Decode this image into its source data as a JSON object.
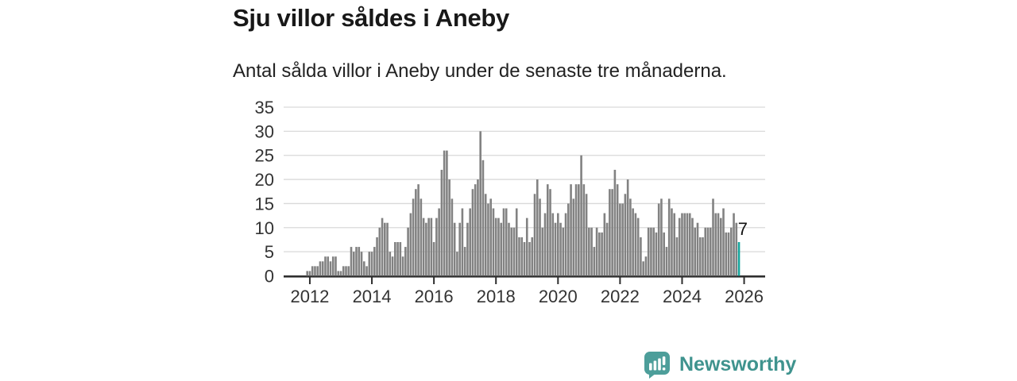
{
  "header": {
    "title": "Sju villor såldes i Aneby",
    "subtitle": "Antal sålda villor i Aneby under de senaste tre månaderna."
  },
  "chart_data": {
    "type": "bar",
    "title": "Sju villor såldes i Aneby",
    "subtitle": "Antal sålda villor i Aneby under de senaste tre månaderna.",
    "ylabel": "",
    "xlabel": "",
    "ylim": [
      0,
      35
    ],
    "grid": true,
    "x_unit": "month",
    "x_start": "2011-12",
    "x_tick_labels": [
      "2012",
      "2014",
      "2016",
      "2018",
      "2020",
      "2022",
      "2024",
      "2026"
    ],
    "y_ticks": [
      0,
      5,
      10,
      15,
      20,
      25,
      30,
      35
    ],
    "values": [
      1,
      1,
      2,
      2,
      2,
      3,
      3,
      4,
      4,
      3,
      4,
      4,
      1,
      1,
      2,
      2,
      2,
      6,
      5,
      6,
      6,
      5,
      3,
      2,
      5,
      5,
      6,
      8,
      10,
      12,
      11,
      11,
      5,
      4,
      7,
      7,
      7,
      4,
      6,
      10,
      13,
      16,
      18,
      19,
      16,
      12,
      11,
      12,
      12,
      7,
      12,
      14,
      22,
      26,
      26,
      20,
      16,
      11,
      5,
      11,
      14,
      6,
      11,
      14,
      18,
      19,
      20,
      30,
      24,
      17,
      15,
      16,
      14,
      12,
      12,
      11,
      14,
      14,
      11,
      10,
      10,
      14,
      8,
      8,
      7,
      12,
      7,
      8,
      17,
      20,
      16,
      10,
      13,
      19,
      18,
      13,
      11,
      13,
      11,
      10,
      13,
      15,
      19,
      16,
      19,
      19,
      25,
      19,
      17,
      10,
      10,
      6,
      10,
      9,
      9,
      13,
      11,
      18,
      18,
      22,
      19,
      15,
      15,
      17,
      20,
      16,
      14,
      13,
      12,
      8,
      3,
      4,
      10,
      10,
      10,
      9,
      15,
      16,
      9,
      6,
      16,
      14,
      13,
      8,
      12,
      13,
      13,
      13,
      13,
      12,
      10,
      11,
      8,
      8,
      10,
      10,
      10,
      16,
      13,
      13,
      12,
      14,
      9,
      9,
      10,
      13,
      11,
      7
    ],
    "highlight_last": true,
    "last_value_label": "7",
    "legend": null,
    "colors": {
      "bar": "#828282",
      "highlight": "#16a59c",
      "grid": "#d9d9d9",
      "axis": "#2e2e2e"
    }
  },
  "footer": {
    "brand": "Newsworthy",
    "logo_icon": "newsworthy-bubble-chart-icon",
    "brand_color": "#3f938e",
    "icon_color": "#4d9e9a"
  }
}
